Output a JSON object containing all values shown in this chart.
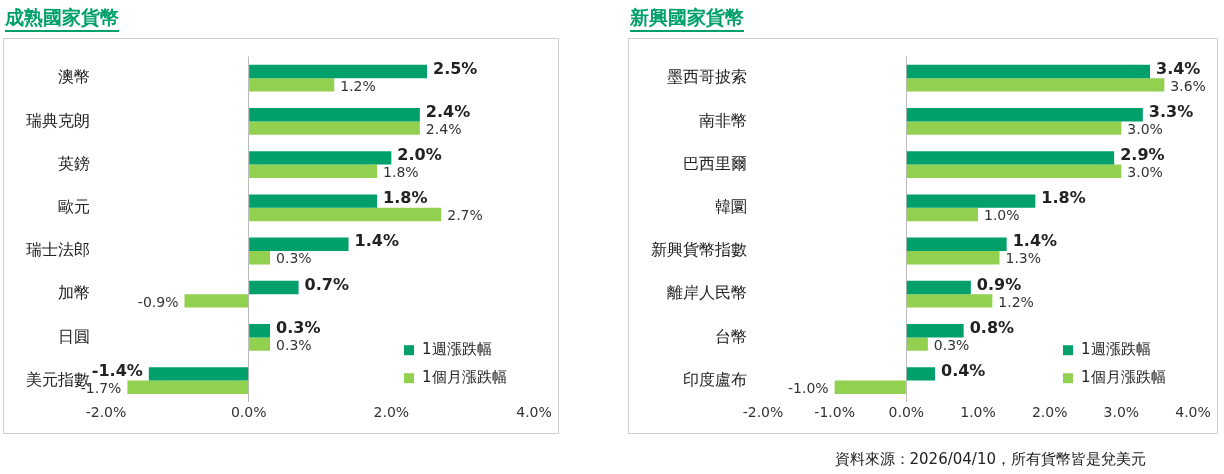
{
  "chart_data": [
    {
      "type": "bar",
      "orientation": "horizontal",
      "title": "成熟國家貨幣",
      "categories": [
        "澳幣",
        "瑞典克朗",
        "英鎊",
        "歐元",
        "瑞士法郎",
        "加幣",
        "日圓",
        "美元指數"
      ],
      "series": [
        {
          "name": "1週漲跌幅",
          "color": "#00a06a",
          "values": [
            2.5,
            2.4,
            2.0,
            1.8,
            1.4,
            0.7,
            0.3,
            -1.4
          ],
          "value_labels": [
            "2.5%",
            "2.4%",
            "2.0%",
            "1.8%",
            "1.4%",
            "0.7%",
            "0.3%",
            "-1.4%"
          ]
        },
        {
          "name": "1個月漲跌幅",
          "color": "#92d050",
          "values": [
            1.2,
            2.4,
            1.8,
            2.7,
            0.3,
            -0.9,
            0.3,
            -1.7
          ],
          "value_labels": [
            "1.2%",
            "2.4%",
            "1.8%",
            "2.7%",
            "0.3%",
            "-0.9%",
            "0.3%",
            "-1.7%"
          ]
        }
      ],
      "xlim": [
        -2,
        4
      ],
      "xticks": [
        {
          "value": -2,
          "label": "-2.0%"
        },
        {
          "value": 0,
          "label": "0.0%"
        },
        {
          "value": 2,
          "label": "2.0%"
        },
        {
          "value": 4,
          "label": "4.0%"
        }
      ],
      "legend": "bottom right"
    },
    {
      "type": "bar",
      "orientation": "horizontal",
      "title": "新興國家貨幣",
      "categories": [
        "墨西哥披索",
        "南非幣",
        "巴西里爾",
        "韓圜",
        "新興貨幣指數",
        "離岸人民幣",
        "台幣",
        "印度盧布"
      ],
      "series": [
        {
          "name": "1週漲跌幅",
          "color": "#00a06a",
          "values": [
            3.4,
            3.3,
            2.9,
            1.8,
            1.4,
            0.9,
            0.8,
            0.4
          ],
          "value_labels": [
            "3.4%",
            "3.3%",
            "2.9%",
            "1.8%",
            "1.4%",
            "0.9%",
            "0.8%",
            "0.4%"
          ]
        },
        {
          "name": "1個月漲跌幅",
          "color": "#92d050",
          "values": [
            3.6,
            3.0,
            3.0,
            1.0,
            1.3,
            1.2,
            0.3,
            -1.0
          ],
          "value_labels": [
            "3.6%",
            "3.0%",
            "3.0%",
            "1.0%",
            "1.3%",
            "1.2%",
            "0.3%",
            "-1.0%"
          ]
        }
      ],
      "xlim": [
        -2,
        4
      ],
      "xticks": [
        {
          "value": -2,
          "label": "-2.0%"
        },
        {
          "value": -1,
          "label": "-1.0%"
        },
        {
          "value": 0,
          "label": "0.0%"
        },
        {
          "value": 1,
          "label": "1.0%"
        },
        {
          "value": 2,
          "label": "2.0%"
        },
        {
          "value": 3,
          "label": "3.0%"
        },
        {
          "value": 4,
          "label": "4.0%"
        }
      ],
      "legend": "bottom right",
      "annotations": [
        "資料來源：2026/04/10，所有貨幣皆是兌美元"
      ]
    }
  ]
}
